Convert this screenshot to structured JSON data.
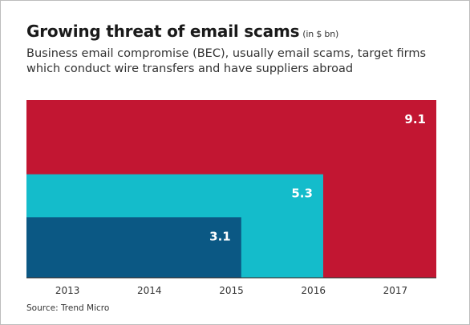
{
  "chart_data": {
    "type": "bar",
    "title": "Growing threat of email scams",
    "unit_note": "(in $ bn)",
    "subtitle": "Business email compromise (BEC), usually email scams, target firms which conduct wire transfers and have suppliers abroad",
    "categories": [
      "2013",
      "2014",
      "2015",
      "2016",
      "2017"
    ],
    "series": [
      {
        "year": "2015",
        "value": 3.1,
        "label": "3.1",
        "color": "#0b5884"
      },
      {
        "year": "2016",
        "value": 5.3,
        "label": "5.3",
        "color": "#14bccb"
      },
      {
        "year": "2017",
        "value": 9.1,
        "label": "9.1",
        "color": "#c21632"
      }
    ],
    "ylim": [
      0,
      9.1
    ],
    "grid": false,
    "source": "Source: Trend Micro"
  }
}
